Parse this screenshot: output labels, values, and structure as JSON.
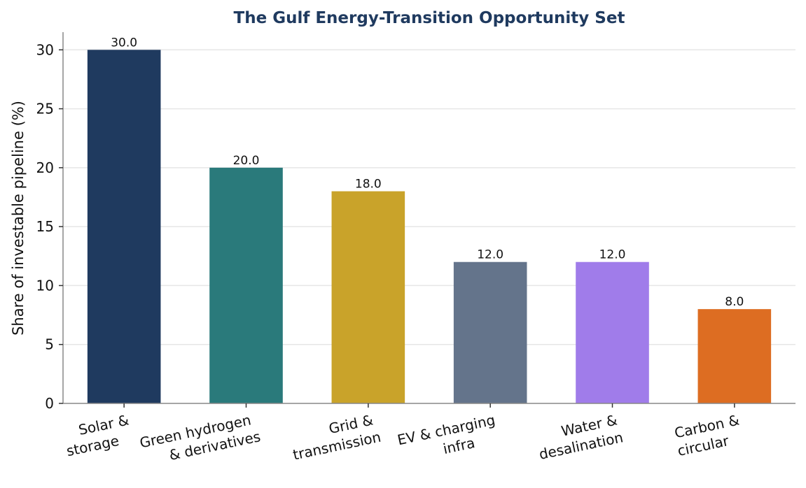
{
  "chart_data": {
    "type": "bar",
    "title": "The Gulf Energy-Transition Opportunity Set",
    "xlabel": "",
    "ylabel": "Share of investable pipeline (%)",
    "ylim": [
      0,
      31.5
    ],
    "yticks": [
      0,
      5,
      10,
      15,
      20,
      25,
      30
    ],
    "grid": true,
    "categories": [
      [
        "Solar &",
        "storage"
      ],
      [
        "Green hydrogen",
        "& derivatives"
      ],
      [
        "Grid &",
        "transmission"
      ],
      [
        "EV & charging",
        "infra"
      ],
      [
        "Water &",
        "desalination"
      ],
      [
        "Carbon &",
        "circular"
      ]
    ],
    "values": [
      30.0,
      20.0,
      18.0,
      12.0,
      12.0,
      8.0
    ],
    "data_labels": [
      "30.0",
      "20.0",
      "18.0",
      "12.0",
      "12.0",
      "8.0"
    ],
    "colors": [
      "#1f3a5f",
      "#2a7a7b",
      "#c9a32a",
      "#64748b",
      "#a07cea",
      "#dd6d22"
    ],
    "title_color": "#1f3a5f"
  }
}
